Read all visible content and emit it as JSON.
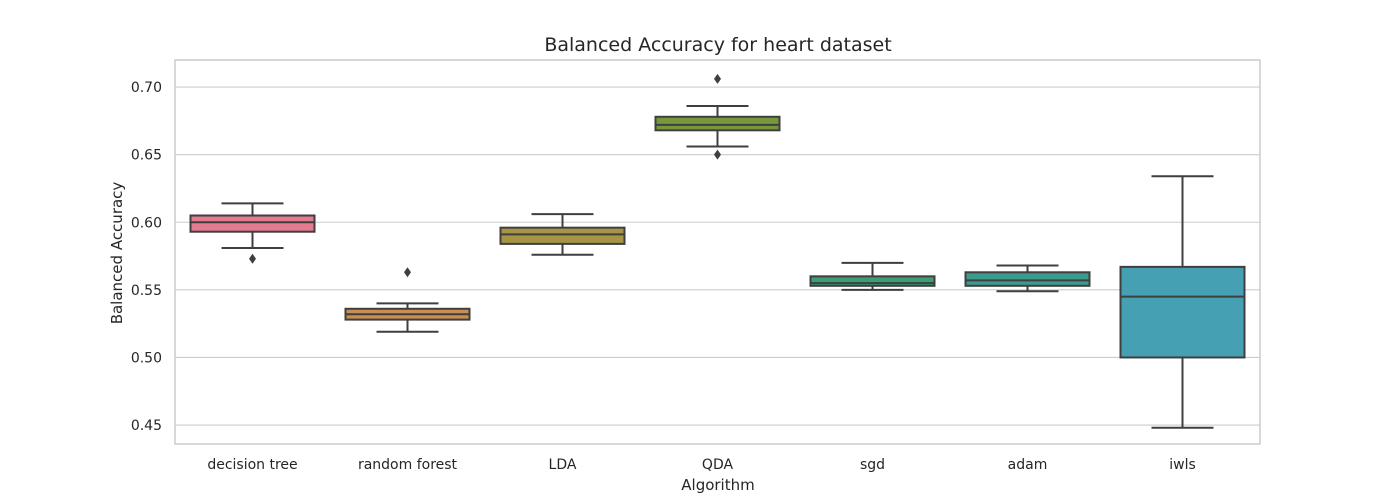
{
  "chart_data": {
    "type": "box",
    "title": "Balanced Accuracy for heart dataset",
    "xlabel": "Algorithm",
    "ylabel": "Balanced Accuracy",
    "ylim": [
      0.436,
      0.72
    ],
    "yticks": [
      0.45,
      0.5,
      0.55,
      0.6,
      0.65,
      0.7
    ],
    "grid": true,
    "categories": [
      "decision tree",
      "random forest",
      "LDA",
      "QDA",
      "sgd",
      "adam",
      "iwls"
    ],
    "colors": [
      "#e57b8e",
      "#c98f52",
      "#a79444",
      "#77973d",
      "#3d9d73",
      "#3b9b8e",
      "#45a0b4"
    ],
    "boxes": [
      {
        "whislo": 0.581,
        "q1": 0.593,
        "med": 0.6,
        "q3": 0.605,
        "whishi": 0.614,
        "fliers": [
          0.573
        ]
      },
      {
        "whislo": 0.519,
        "q1": 0.528,
        "med": 0.532,
        "q3": 0.536,
        "whishi": 0.54,
        "fliers": [
          0.563
        ]
      },
      {
        "whislo": 0.576,
        "q1": 0.584,
        "med": 0.591,
        "q3": 0.596,
        "whishi": 0.606,
        "fliers": []
      },
      {
        "whislo": 0.656,
        "q1": 0.668,
        "med": 0.672,
        "q3": 0.678,
        "whishi": 0.686,
        "fliers": [
          0.706,
          0.65
        ]
      },
      {
        "whislo": 0.55,
        "q1": 0.553,
        "med": 0.555,
        "q3": 0.56,
        "whishi": 0.57,
        "fliers": []
      },
      {
        "whislo": 0.549,
        "q1": 0.553,
        "med": 0.557,
        "q3": 0.563,
        "whishi": 0.568,
        "fliers": []
      },
      {
        "whislo": 0.448,
        "q1": 0.5,
        "med": 0.545,
        "q3": 0.567,
        "whishi": 0.634,
        "fliers": []
      }
    ]
  }
}
